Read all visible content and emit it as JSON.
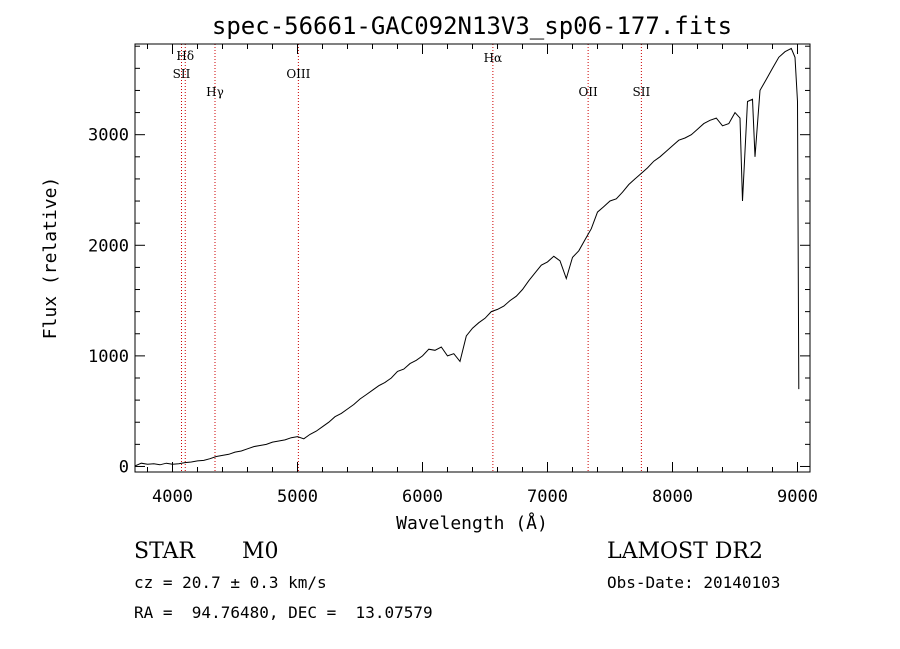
{
  "chart_data": {
    "type": "line",
    "title": "spec-56661-GAC092N13V3_sp06-177.fits",
    "xlabel": "Wavelength (Å)",
    "ylabel": "Flux (relative)",
    "xlim": [
      3700,
      9100
    ],
    "ylim": [
      -50,
      3820
    ],
    "xticks": [
      4000,
      5000,
      6000,
      7000,
      8000,
      9000
    ],
    "yticks": [
      0,
      1000,
      2000,
      3000
    ],
    "grid": false,
    "line_color": "#000000",
    "marker_color": "#cc0000",
    "spectral_lines": [
      {
        "label": "Hδ",
        "wavelength": 4102
      },
      {
        "label": "SII",
        "wavelength": 4072
      },
      {
        "label": "Hγ",
        "wavelength": 4340
      },
      {
        "label": "OIII",
        "wavelength": 5007
      },
      {
        "label": "Hα",
        "wavelength": 6563
      },
      {
        "label": "OII",
        "wavelength": 7325
      },
      {
        "label": "SII",
        "wavelength": 7751
      }
    ],
    "series": [
      {
        "x": [
          3700,
          3750,
          3800,
          3850,
          3900,
          3950,
          4000,
          4050,
          4100,
          4150,
          4200,
          4250,
          4300,
          4350,
          4400,
          4450,
          4500,
          4550,
          4600,
          4650,
          4700,
          4750,
          4800,
          4850,
          4900,
          4950,
          5000,
          5050,
          5100,
          5150,
          5200,
          5250,
          5300,
          5350,
          5400,
          5450,
          5500,
          5550,
          5600,
          5650,
          5700,
          5750,
          5800,
          5850,
          5900,
          5950,
          6000,
          6050,
          6100,
          6150,
          6200,
          6250,
          6300,
          6350,
          6400,
          6450,
          6500,
          6550,
          6600,
          6650,
          6700,
          6750,
          6800,
          6850,
          6900,
          6950,
          7000,
          7050,
          7100,
          7150,
          7200,
          7250,
          7300,
          7350,
          7400,
          7450,
          7500,
          7550,
          7600,
          7650,
          7700,
          7750,
          7800,
          7850,
          7900,
          7950,
          8000,
          8050,
          8100,
          8150,
          8200,
          8250,
          8300,
          8350,
          8400,
          8450,
          8500,
          8540,
          8560,
          8600,
          8640,
          8660,
          8700,
          8750,
          8800,
          8850,
          8900,
          8950,
          8980,
          9000,
          9010
        ],
        "y": [
          5,
          30,
          20,
          25,
          15,
          30,
          20,
          25,
          35,
          40,
          50,
          55,
          70,
          90,
          100,
          110,
          130,
          140,
          160,
          180,
          190,
          200,
          220,
          230,
          240,
          260,
          270,
          250,
          290,
          320,
          360,
          400,
          450,
          480,
          520,
          560,
          610,
          650,
          690,
          730,
          760,
          800,
          860,
          880,
          930,
          960,
          1000,
          1060,
          1050,
          1080,
          1000,
          1020,
          950,
          1180,
          1250,
          1300,
          1340,
          1400,
          1420,
          1450,
          1500,
          1540,
          1600,
          1680,
          1750,
          1820,
          1850,
          1900,
          1860,
          1700,
          1890,
          1950,
          2050,
          2150,
          2300,
          2350,
          2400,
          2420,
          2480,
          2550,
          2600,
          2650,
          2700,
          2760,
          2800,
          2850,
          2900,
          2950,
          2970,
          3000,
          3050,
          3100,
          3130,
          3150,
          3080,
          3100,
          3200,
          3150,
          2400,
          3300,
          3320,
          2800,
          3400,
          3500,
          3600,
          3700,
          3750,
          3780,
          3700,
          3300,
          700
        ]
      }
    ]
  },
  "info": {
    "class_label": "STAR",
    "subclass": "M0",
    "survey": "LAMOST DR2",
    "redshift": "cz = 20.7 ± 0.3 km/s",
    "obs_date": "Obs-Date: 20140103",
    "coords": "RA =  94.76480, DEC =  13.07579"
  }
}
